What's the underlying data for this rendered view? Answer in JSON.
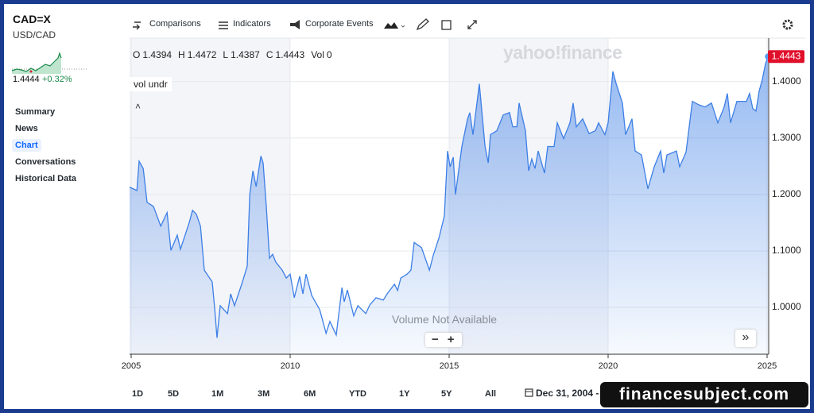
{
  "header": {
    "symbol": "CAD=X",
    "pair": "USD/CAD",
    "price": "1.4444",
    "change": "+0.32%"
  },
  "nav": [
    "Summary",
    "News",
    "Chart",
    "Conversations",
    "Historical Data"
  ],
  "toolbar": [
    "Comparisons",
    "Indicators",
    "Corporate Events"
  ],
  "ohlc": [
    {
      "key": "O",
      "value": "1.4394"
    },
    {
      "key": "H",
      "value": "1.4472"
    },
    {
      "key": "L",
      "value": "1.4387"
    },
    {
      "key": "C",
      "value": "1.4443"
    },
    {
      "key": "Vol",
      "value": "0"
    }
  ],
  "study": "vol undr",
  "watermark": "yahoo!finance",
  "volume_note": "Volume Not Available",
  "ranges": [
    "1D",
    "5D",
    "1M",
    "3M",
    "6M",
    "YTD",
    "1Y",
    "5Y",
    "All"
  ],
  "date_range": "Dec 31, 2004 -",
  "site_badge": "financesubject.com",
  "chart_data": {
    "type": "area",
    "color": "#3d7fe6",
    "grid": true,
    "x": [
      2004.95,
      2005.18,
      2005.25,
      2005.38,
      2005.5,
      2005.7,
      2005.93,
      2006.13,
      2006.25,
      2006.45,
      2006.55,
      2006.83,
      2006.93,
      2007.05,
      2007.18,
      2007.3,
      2007.55,
      2007.63,
      2007.7,
      2007.8,
      2008.03,
      2008.13,
      2008.25,
      2008.5,
      2008.65,
      2008.73,
      2008.83,
      2008.93,
      2009.08,
      2009.15,
      2009.25,
      2009.35,
      2009.45,
      2009.55,
      2009.75,
      2009.88,
      2010.0,
      2010.13,
      2010.3,
      2010.4,
      2010.5,
      2010.68,
      2010.93,
      2011.13,
      2011.25,
      2011.45,
      2011.63,
      2011.7,
      2011.8,
      2012.0,
      2012.13,
      2012.38,
      2012.5,
      2012.7,
      2012.93,
      2013.05,
      2013.28,
      2013.38,
      2013.48,
      2013.68,
      2013.8,
      2013.9,
      2014.13,
      2014.38,
      2014.5,
      2014.68,
      2014.85,
      2014.95,
      2015.03,
      2015.13,
      2015.2,
      2015.4,
      2015.58,
      2015.65,
      2015.75,
      2015.95,
      2016.13,
      2016.23,
      2016.3,
      2016.5,
      2016.7,
      2016.9,
      2017.0,
      2017.13,
      2017.2,
      2017.4,
      2017.5,
      2017.6,
      2017.7,
      2017.8,
      2018.0,
      2018.1,
      2018.3,
      2018.4,
      2018.6,
      2018.8,
      2018.9,
      2019.0,
      2019.2,
      2019.4,
      2019.6,
      2019.7,
      2019.9,
      2020.0,
      2020.15,
      2020.25,
      2020.45,
      2020.55,
      2020.75,
      2020.85,
      2021.05,
      2021.25,
      2021.45,
      2021.65,
      2021.75,
      2021.85,
      2022.15,
      2022.25,
      2022.45,
      2022.65,
      2022.85,
      2023.05,
      2023.25,
      2023.45,
      2023.65,
      2023.75,
      2023.85,
      2024.05,
      2024.35,
      2024.45,
      2024.55,
      2024.65,
      2024.75,
      2024.85,
      2024.95,
      2025.03
    ],
    "values": [
      1.213,
      1.207,
      1.259,
      1.246,
      1.186,
      1.179,
      1.144,
      1.168,
      1.101,
      1.128,
      1.103,
      1.151,
      1.172,
      1.165,
      1.144,
      1.066,
      1.045,
      0.996,
      0.946,
      1.003,
      0.989,
      1.024,
      1.003,
      1.045,
      1.073,
      1.2,
      1.242,
      1.214,
      1.268,
      1.256,
      1.179,
      1.087,
      1.094,
      1.08,
      1.066,
      1.052,
      1.059,
      1.017,
      1.055,
      1.024,
      1.059,
      1.021,
      0.996,
      0.954,
      0.975,
      0.951,
      1.035,
      1.01,
      1.031,
      0.985,
      1.003,
      0.989,
      1.004,
      1.017,
      1.013,
      1.024,
      1.041,
      1.03,
      1.052,
      1.059,
      1.066,
      1.115,
      1.106,
      1.066,
      1.092,
      1.123,
      1.162,
      1.277,
      1.249,
      1.266,
      1.2,
      1.285,
      1.334,
      1.345,
      1.306,
      1.396,
      1.285,
      1.256,
      1.306,
      1.313,
      1.341,
      1.345,
      1.32,
      1.32,
      1.362,
      1.313,
      1.242,
      1.263,
      1.246,
      1.277,
      1.238,
      1.285,
      1.285,
      1.327,
      1.299,
      1.327,
      1.362,
      1.32,
      1.334,
      1.308,
      1.313,
      1.327,
      1.306,
      1.327,
      1.418,
      1.397,
      1.362,
      1.306,
      1.334,
      1.277,
      1.27,
      1.21,
      1.249,
      1.277,
      1.238,
      1.27,
      1.277,
      1.249,
      1.275,
      1.365,
      1.359,
      1.355,
      1.362,
      1.327,
      1.355,
      1.379,
      1.327,
      1.365,
      1.365,
      1.379,
      1.352,
      1.348,
      1.383,
      1.404,
      1.432,
      1.4443
    ],
    "xlim": [
      2004.95,
      2025.05
    ],
    "xticks": [
      2005,
      2010,
      2015,
      2020,
      2025
    ],
    "ylim": [
      0.917,
      1.477
    ],
    "yticks": [
      {
        "value": 1.0,
        "label": "1.0000"
      },
      {
        "value": 1.1,
        "label": "1.1000"
      },
      {
        "value": 1.2,
        "label": "1.2000"
      },
      {
        "value": 1.3,
        "label": "1.3000"
      },
      {
        "value": 1.4,
        "label": "1.4000"
      }
    ]
  }
}
